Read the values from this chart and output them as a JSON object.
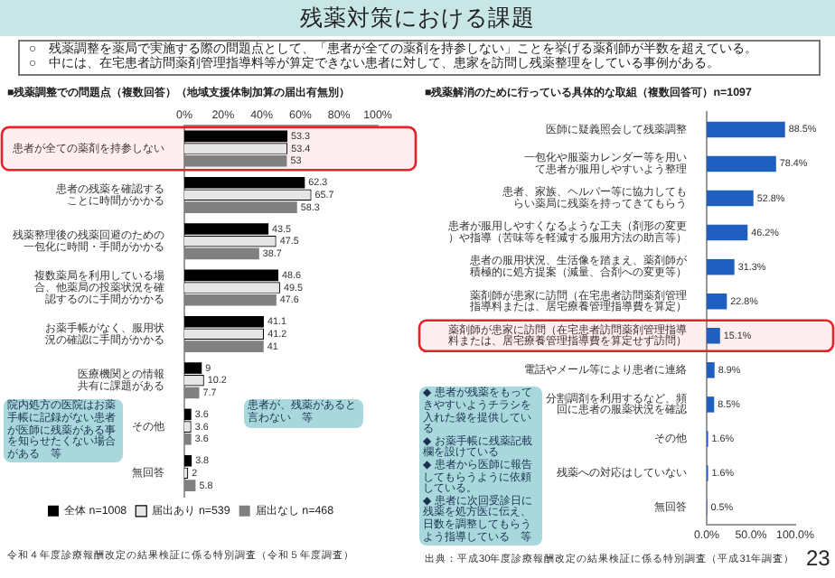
{
  "chart_data": [
    {
      "type": "other",
      "title": "残薬対策における課題",
      "annotations": [
        "○　残薬調整を薬局で実施する際の問題点として、「患者が全ての薬剤を持参しない」ことを挙げる薬剤師が半数を超えている。",
        "○　中には、在宅患者訪問薬剤管理指導料等が算定できない患者に対して、患家を訪問し残薬整理をしている事例がある。",
        "23"
      ]
    },
    {
      "type": "bar",
      "orientation": "horizontal",
      "title": "■残薬調整での問題点（複数回答）（地域支援体制加算の届出有無別）",
      "categories": [
        "患者が全ての薬剤を持参しない",
        "患者の残薬を確認することに時間がかかる",
        "残薬整理後の残薬回避のための一包化に時間・手間がかかる",
        "複数薬局を利用している場合、他薬局の投薬状況を確認するのに手間がかかる",
        "お薬手帳がなく、服用状況の確認に手間がかかる",
        "医療機関との情報共有に課題がある",
        "その他",
        "無回答"
      ],
      "series": [
        {
          "name": "全体 n=1008",
          "color": "#000000",
          "values": [
            53.3,
            62.3,
            43.5,
            48.6,
            41.1,
            9.0,
            3.6,
            3.8
          ]
        },
        {
          "name": "届出あり n=539",
          "color": "#e6e6e6",
          "values": [
            53.4,
            65.7,
            47.5,
            49.5,
            41.2,
            10.2,
            3.6,
            2.0
          ]
        },
        {
          "name": "届出なし n=468",
          "color": "#808080",
          "values": [
            53.0,
            58.3,
            38.7,
            47.6,
            41.0,
            7.7,
            3.6,
            5.8
          ]
        }
      ],
      "xlim": [
        0,
        100
      ],
      "xticks": [
        {
          "value": 0,
          "label": "0%"
        },
        {
          "value": 20,
          "label": "20%"
        },
        {
          "value": 40,
          "label": "40%"
        },
        {
          "value": 60,
          "label": "60%"
        },
        {
          "value": 80,
          "label": "80%"
        },
        {
          "value": 100,
          "label": "100%"
        }
      ],
      "data_labels": true,
      "legend": "bottom",
      "bands": [
        {
          "axis": "y",
          "from": "患者が全ての薬剤を持参しない",
          "to": "患者が全ての薬剤を持参しない",
          "color": "#e8202a"
        }
      ],
      "annotations": [
        "院内処方の医院はお薬手帳に記録がない患者が医師に残薬がある事を知らせたくない場合がある　等",
        "患者が、残薬があると言わない　等",
        "令和４年度診療報酬改定の結果検証に係る特別調査（令和５年度調査）"
      ]
    },
    {
      "type": "bar",
      "orientation": "horizontal",
      "title": "■残薬解消のために行っている具体的な取組（複数回答可）n=1097",
      "categories": [
        "医師に疑義照会して残薬調整",
        "一包化や服薬カレンダー等を用いて患者が服用しやすいよう整理",
        "患者、家族、ヘルパー等に協力してもらい薬局に残薬を持ってきてもらう",
        "患者が服用しやすくなるような工夫（剤形の変更）や指導（苦味等を軽減する服用方法の助言等）",
        "患者の服用状況、生活像を踏まえ、薬剤師が積極的に処方提案（減量、合剤への変更等）",
        "薬剤師が患家に訪問（在宅患者訪問薬剤管理指導料または、居宅療養管理指導費を算定）",
        "薬剤師が患家に訪問（在宅患者訪問薬剤管理指導料または、居宅療養管理指導費を算定せず訪問）",
        "電話やメール等により患者に連絡",
        "分割調剤を利用するなど、頻回に患者の服薬状況を確認",
        "その他",
        "残薬への対応はしていない",
        "無回答"
      ],
      "values": [
        88.5,
        78.4,
        52.8,
        46.2,
        31.3,
        22.8,
        15.1,
        8.9,
        8.5,
        1.6,
        1.6,
        0.5
      ],
      "value_labels": [
        "88.5%",
        "78.4%",
        "52.8%",
        "46.2%",
        "31.3%",
        "22.8%",
        "15.1%",
        "8.9%",
        "8.5%",
        "1.6%",
        "1.6%",
        "0.5%"
      ],
      "color": "#1f5fbf",
      "xlim": [
        0,
        100
      ],
      "xticks": [
        {
          "value": 0,
          "label": "0.0%"
        },
        {
          "value": 50,
          "label": "50.0%"
        },
        {
          "value": 100,
          "label": "100.0%"
        }
      ],
      "bands": [
        {
          "axis": "y",
          "from": "薬剤師が患家に訪問（在宅患者訪問薬剤管理指導料または、居宅療養管理指導費を算定せず訪問）",
          "to": "薬剤師が患家に訪問（在宅患者訪問薬剤管理指導料または、居宅療養管理指導費を算定せず訪問）",
          "color": "#e8202a"
        }
      ],
      "annotations": [
        "◆ 患者が残薬をもってきやすいようチラシを入れた袋を提供している\n◆ お薬手帳に残薬記載欄を設けている\n◆ 患者から医師に報告してもらうように依頼している。\n◆ 患者に次回受診日に残薬を処方医に伝え、日数を調整してもらうよう指導している　等",
        "出典：平成30年度診療報酬改定の結果検証に係る特別調査（平成31年調査）"
      ]
    }
  ]
}
